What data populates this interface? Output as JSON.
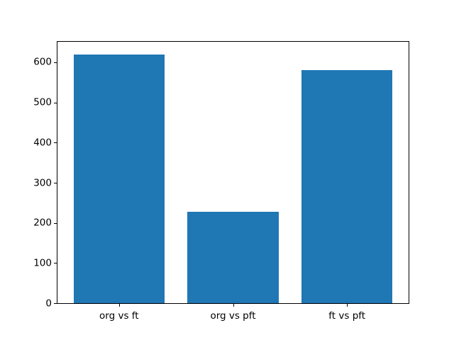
{
  "chart_data": {
    "type": "bar",
    "categories": [
      "org vs ft",
      "org vs pft",
      "ft vs pft"
    ],
    "values": [
      620,
      228,
      580
    ],
    "title": "",
    "xlabel": "",
    "ylabel": "",
    "ylim": [
      0,
      651
    ],
    "yticks": [
      0,
      100,
      200,
      300,
      400,
      500,
      600
    ],
    "bar_color": "#1f77b4",
    "axis_color": "#000000",
    "background_color": "#ffffff",
    "grid": false,
    "legend": null,
    "bar_width_fraction": 0.8,
    "xlim": [
      -0.54,
      2.54
    ]
  }
}
